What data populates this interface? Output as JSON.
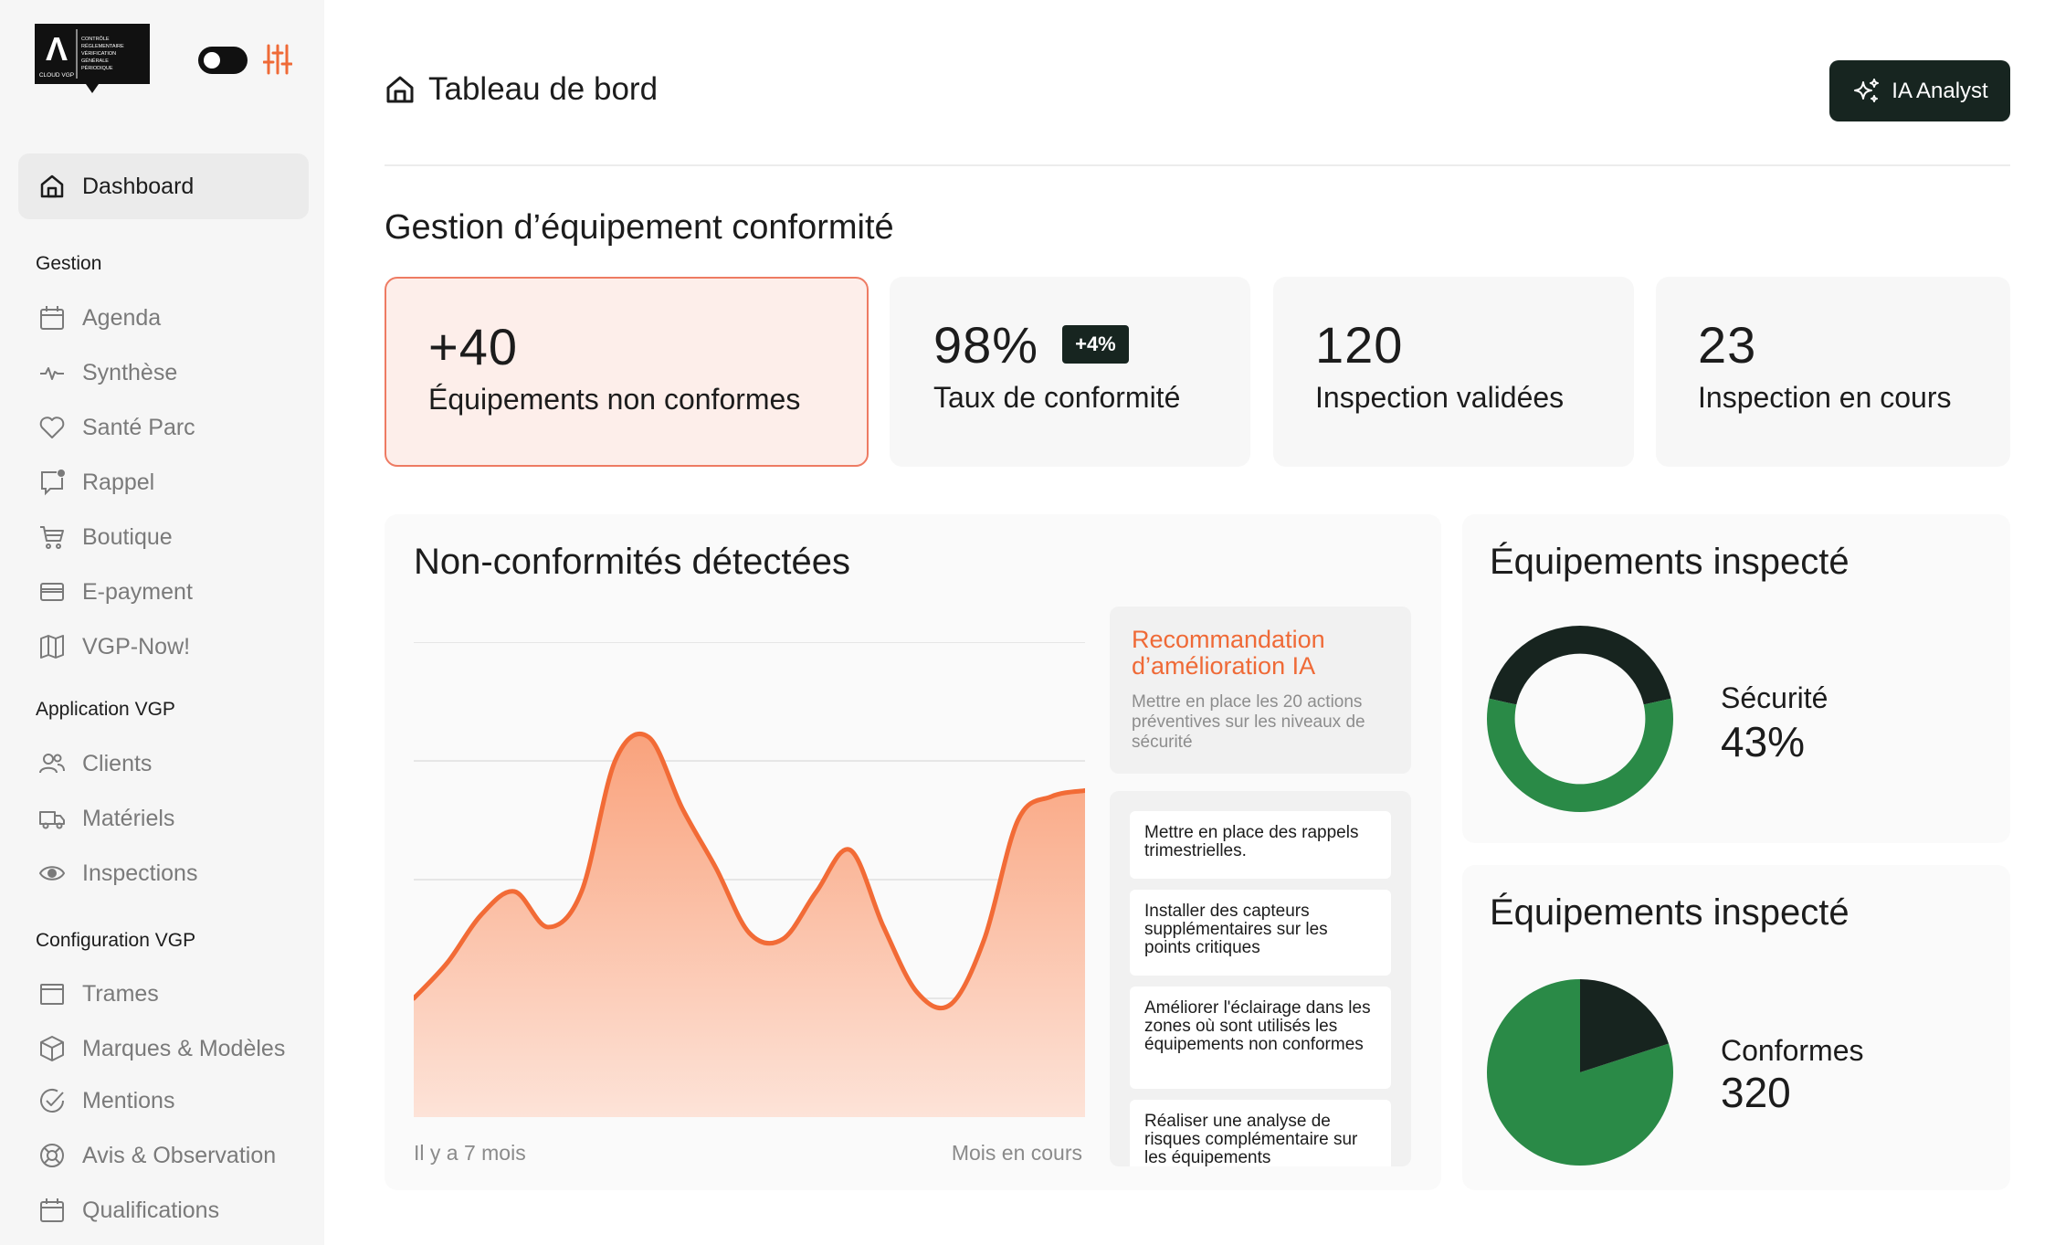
{
  "brand": {
    "logo_letter": "Λ",
    "logo_subtext": "CLOUD VGP",
    "logo_tagline": [
      "CONTRÔLE",
      "RÉGLEMENTAIRE",
      "VÉRIFICATION",
      "GÉNÉRALE",
      "PÉRIODIQUE"
    ]
  },
  "sidebar": {
    "active": {
      "label": "Dashboard",
      "icon": "home-icon"
    },
    "sections": [
      {
        "title": "Gestion",
        "items": [
          {
            "label": "Agenda",
            "icon": "calendar-icon"
          },
          {
            "label": "Synthèse",
            "icon": "activity-icon"
          },
          {
            "label": "Santé Parc",
            "icon": "heart-icon"
          },
          {
            "label": "Rappel",
            "icon": "notification-icon"
          },
          {
            "label": "Boutique",
            "icon": "cart-icon"
          },
          {
            "label": "E-payment",
            "icon": "credit-card-icon"
          },
          {
            "label": "VGP-Now!",
            "icon": "map-icon"
          }
        ]
      },
      {
        "title": "Application VGP",
        "items": [
          {
            "label": "Clients",
            "icon": "users-icon"
          },
          {
            "label": "Matériels",
            "icon": "truck-icon"
          },
          {
            "label": "Inspections",
            "icon": "eye-icon"
          }
        ]
      },
      {
        "title": "Configuration VGP",
        "items": [
          {
            "label": "Trames",
            "icon": "window-icon"
          },
          {
            "label": "Marques & Modèles",
            "icon": "box-icon"
          },
          {
            "label": "Mentions",
            "icon": "check-circle-icon"
          },
          {
            "label": "Avis & Observation",
            "icon": "lifebuoy-icon"
          },
          {
            "label": "Qualifications",
            "icon": "calendar-icon"
          }
        ]
      }
    ]
  },
  "header": {
    "title": "Tableau de bord",
    "ia_button": "IA Analyst"
  },
  "main": {
    "section_title": "Gestion d’équipement conformité",
    "kpis": [
      {
        "value": "+40",
        "label": "Équipements non conformes",
        "badge": ""
      },
      {
        "value": "98%",
        "label": "Taux de conformité",
        "badge": "+4%"
      },
      {
        "value": "120",
        "label": "Inspection validées",
        "badge": ""
      },
      {
        "value": "23",
        "label": "Inspection en cours",
        "badge": ""
      }
    ]
  },
  "chart_card": {
    "title": "Non-conformités détectées",
    "x_start_label": "Il y a 7 mois",
    "x_end_label": "Mois en cours",
    "recommendation": {
      "title": "Recommandation d’amélioration IA",
      "text": "Mettre en place les 20 actions préventives sur les niveaux de sécurité"
    },
    "actions": [
      "Mettre en place des rappels trimestrielles.",
      "Installer des capteurs supplémentaires sur les points critiques",
      "Améliorer l'éclairage dans les zones où sont utilisés les équipements non conformes",
      "Réaliser une analyse de risques complémentaire sur les équipements"
    ]
  },
  "chart_data": [
    {
      "type": "area",
      "title": "Non-conformités détectées",
      "x": [
        0,
        0.5,
        1,
        1.5,
        2,
        2.5,
        3,
        3.5,
        4,
        4.5,
        5,
        5.5,
        6,
        6.5,
        7,
        7.5,
        8,
        8.5,
        9,
        9.5,
        10
      ],
      "values": [
        1.0,
        1.3,
        1.7,
        1.9,
        1.6,
        1.9,
        3.0,
        3.2,
        2.6,
        2.1,
        1.55,
        1.5,
        1.9,
        2.25,
        1.6,
        1.05,
        0.95,
        1.5,
        2.5,
        2.7,
        2.75
      ],
      "ylim": [
        0,
        4
      ],
      "grid": true,
      "colors": {
        "line": "#f26b36",
        "fill_top": "#f9a27c",
        "fill_bottom": "#fde3d8"
      }
    },
    {
      "type": "pie",
      "style": "donut",
      "title": "Équipements inspecté",
      "slices": [
        {
          "label": "Sécurité",
          "value": 43,
          "color": "#17241f"
        },
        {
          "label": "",
          "value": 57,
          "color": "#2a8a47"
        }
      ]
    },
    {
      "type": "pie",
      "title": "Équipements inspecté",
      "slices": [
        {
          "label": "Conformes",
          "value": 80,
          "color": "#2a8a47"
        },
        {
          "label": "",
          "value": 20,
          "color": "#17241f"
        }
      ]
    }
  ],
  "donut_card": {
    "title": "Équipements inspecté",
    "label": "Sécurité",
    "value": "43%"
  },
  "pie_card": {
    "title": "Équipements inspecté",
    "label": "Conformes",
    "value": "320"
  }
}
